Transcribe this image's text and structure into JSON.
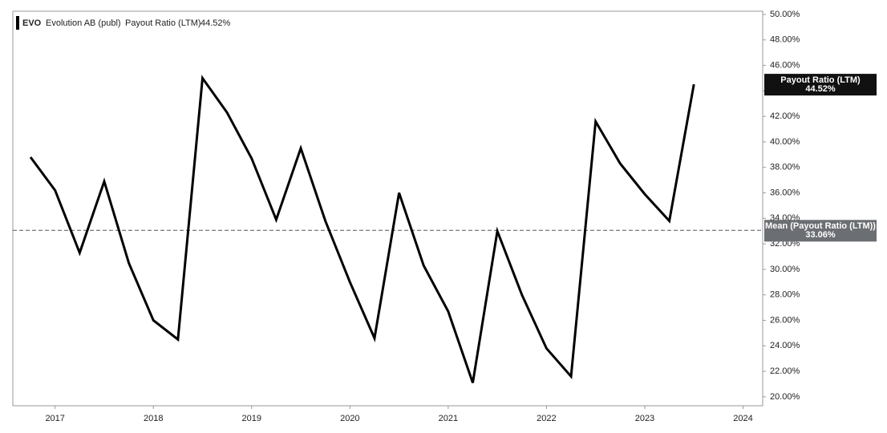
{
  "chart_data": {
    "type": "line",
    "ticker": "EVO",
    "company": "Evolution AB (publ)",
    "x": [
      2016.75,
      2017,
      2017.25,
      2017.5,
      2017.75,
      2018,
      2018.25,
      2018.5,
      2018.75,
      2019,
      2019.25,
      2019.5,
      2019.75,
      2020,
      2020.25,
      2020.5,
      2020.75,
      2021,
      2021.25,
      2021.5,
      2021.75,
      2022,
      2022.25,
      2022.5,
      2022.75,
      2023,
      2023.25,
      2023.5
    ],
    "series": [
      {
        "name": "Payout Ratio (LTM)",
        "color": "#000000",
        "values": [
          38.8,
          36.2,
          31.3,
          36.9,
          30.5,
          26.0,
          24.5,
          45.0,
          42.3,
          38.7,
          33.9,
          39.5,
          33.8,
          29.0,
          24.6,
          36.0,
          30.3,
          26.7,
          21.1,
          33.0,
          28.0,
          23.8,
          21.6,
          41.6,
          38.3,
          35.9,
          33.8,
          44.52
        ],
        "value_labels": [
          null,
          null,
          null,
          null,
          null,
          null,
          null,
          null,
          null,
          null,
          null,
          null,
          null,
          null,
          null,
          null,
          null,
          null,
          null,
          null,
          null,
          null,
          null,
          null,
          null,
          null,
          null,
          "44.52%"
        ]
      }
    ],
    "mean": {
      "name": "Mean (Payout Ratio (LTM))",
      "value": 33.06,
      "label": "33.06%"
    },
    "xlim": [
      2016.57,
      2024.2
    ],
    "xticks": [
      2017,
      2018,
      2019,
      2020,
      2021,
      2022,
      2023,
      2024
    ],
    "ylim": [
      19.3,
      50.25
    ],
    "yticks": [
      {
        "value": 20,
        "label": "20.00%"
      },
      {
        "value": 22,
        "label": "22.00%"
      },
      {
        "value": 24,
        "label": "24.00%"
      },
      {
        "value": 26,
        "label": "26.00%"
      },
      {
        "value": 28,
        "label": "28.00%"
      },
      {
        "value": 30,
        "label": "30.00%"
      },
      {
        "value": 32,
        "label": "32.00%"
      },
      {
        "value": 34,
        "label": "34.00%"
      },
      {
        "value": 36,
        "label": "36.00%"
      },
      {
        "value": 38,
        "label": "38.00%"
      },
      {
        "value": 40,
        "label": "40.00%"
      },
      {
        "value": 42,
        "label": "42.00%"
      },
      {
        "value": 44,
        "label": "44.00%"
      },
      {
        "value": 46,
        "label": "46.00%"
      },
      {
        "value": 48,
        "label": "48.00%"
      },
      {
        "value": 50,
        "label": "50.00%"
      }
    ],
    "grid": false
  }
}
